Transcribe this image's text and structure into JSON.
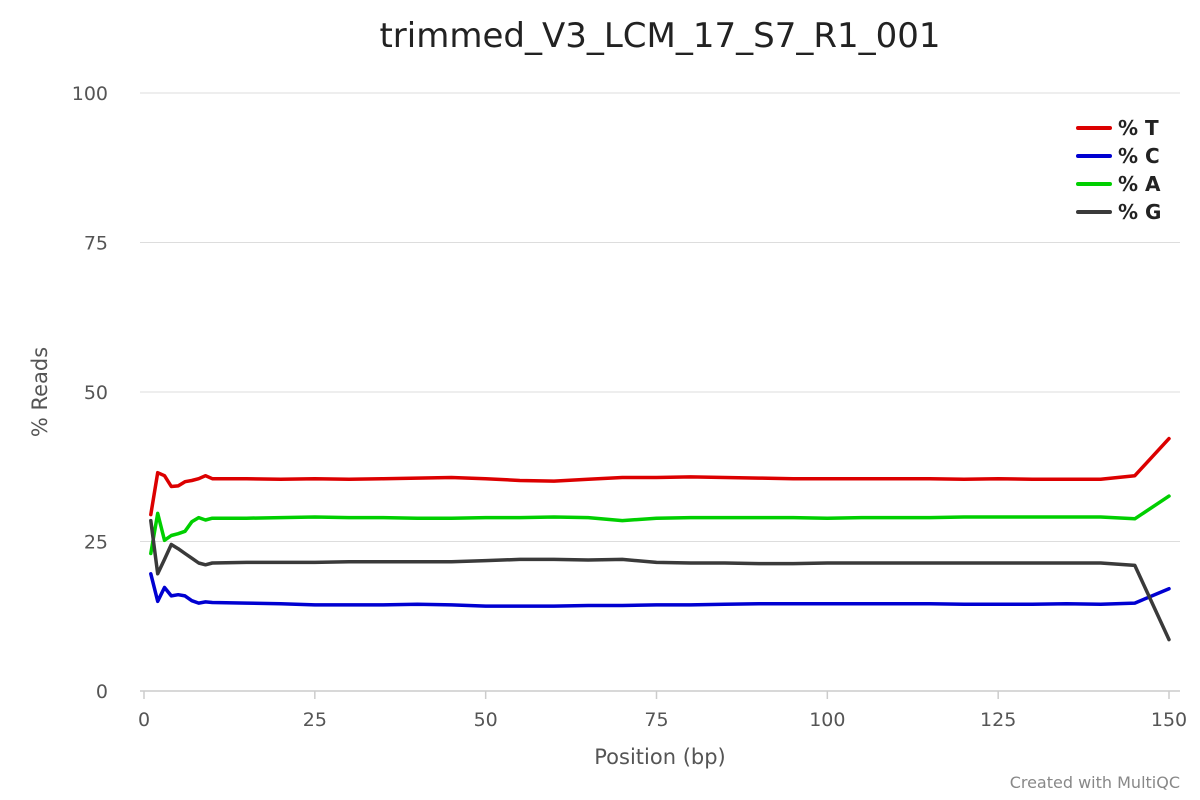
{
  "chart_data": {
    "type": "line",
    "title": "trimmed_V3_LCM_17_S7_R1_001",
    "xlabel": "Position (bp)",
    "ylabel": "% Reads",
    "xlim": [
      0,
      151
    ],
    "ylim": [
      0,
      100
    ],
    "x_ticks": [
      "0",
      "25",
      "50",
      "75",
      "100",
      "125",
      "150"
    ],
    "y_ticks": [
      "0",
      "25",
      "50",
      "75",
      "100"
    ],
    "grid": "horizontal",
    "legend_position": "top-right",
    "credit": "Created with MultiQC",
    "series": [
      {
        "name": "% T",
        "color": "#dc0000",
        "x": [
          1,
          2,
          3,
          4,
          5,
          6,
          7,
          8,
          9,
          10,
          15,
          20,
          25,
          30,
          35,
          40,
          45,
          50,
          55,
          60,
          65,
          70,
          75,
          80,
          85,
          90,
          95,
          100,
          105,
          110,
          115,
          120,
          125,
          130,
          135,
          140,
          145,
          150
        ],
        "y": [
          29.5,
          36.5,
          36.0,
          34.2,
          34.3,
          35.0,
          35.2,
          35.5,
          36.0,
          35.5,
          35.5,
          35.4,
          35.5,
          35.4,
          35.5,
          35.6,
          35.7,
          35.5,
          35.2,
          35.1,
          35.4,
          35.7,
          35.7,
          35.8,
          35.7,
          35.6,
          35.5,
          35.5,
          35.5,
          35.5,
          35.5,
          35.4,
          35.5,
          35.4,
          35.4,
          35.4,
          36.0,
          42.2
        ]
      },
      {
        "name": "% C",
        "color": "#0000d1",
        "x": [
          1,
          2,
          3,
          4,
          5,
          6,
          7,
          8,
          9,
          10,
          15,
          20,
          25,
          30,
          35,
          40,
          45,
          50,
          55,
          60,
          65,
          70,
          75,
          80,
          85,
          90,
          95,
          100,
          105,
          110,
          115,
          120,
          125,
          130,
          135,
          140,
          145,
          150
        ],
        "y": [
          19.6,
          15.0,
          17.3,
          15.9,
          16.1,
          15.9,
          15.1,
          14.7,
          14.9,
          14.8,
          14.7,
          14.6,
          14.4,
          14.4,
          14.4,
          14.5,
          14.4,
          14.2,
          14.2,
          14.2,
          14.3,
          14.3,
          14.4,
          14.4,
          14.5,
          14.6,
          14.6,
          14.6,
          14.6,
          14.6,
          14.6,
          14.5,
          14.5,
          14.5,
          14.6,
          14.5,
          14.7,
          17.1
        ]
      },
      {
        "name": "% A",
        "color": "#00cf00",
        "x": [
          1,
          2,
          3,
          4,
          5,
          6,
          7,
          8,
          9,
          10,
          15,
          20,
          25,
          30,
          35,
          40,
          45,
          50,
          55,
          60,
          65,
          70,
          75,
          80,
          85,
          90,
          95,
          100,
          105,
          110,
          115,
          120,
          125,
          130,
          135,
          140,
          145,
          150
        ],
        "y": [
          23.0,
          29.7,
          25.2,
          26.0,
          26.3,
          26.7,
          28.3,
          29.0,
          28.6,
          28.9,
          28.9,
          29.0,
          29.1,
          29.0,
          29.0,
          28.9,
          28.9,
          29.0,
          29.0,
          29.1,
          29.0,
          28.5,
          28.9,
          29.0,
          29.0,
          29.0,
          29.0,
          28.9,
          29.0,
          29.0,
          29.0,
          29.1,
          29.1,
          29.1,
          29.1,
          29.1,
          28.8,
          32.6
        ]
      },
      {
        "name": "% G",
        "color": "#3a3a3a",
        "x": [
          1,
          2,
          3,
          4,
          5,
          6,
          7,
          8,
          9,
          10,
          15,
          20,
          25,
          30,
          35,
          40,
          45,
          50,
          55,
          60,
          65,
          70,
          75,
          80,
          85,
          90,
          95,
          100,
          105,
          110,
          115,
          120,
          125,
          130,
          135,
          140,
          145,
          150
        ],
        "y": [
          28.5,
          19.6,
          22.0,
          24.5,
          23.8,
          23.0,
          22.2,
          21.4,
          21.1,
          21.4,
          21.5,
          21.5,
          21.5,
          21.6,
          21.6,
          21.6,
          21.6,
          21.8,
          22.0,
          22.0,
          21.9,
          22.0,
          21.5,
          21.4,
          21.4,
          21.3,
          21.3,
          21.4,
          21.4,
          21.4,
          21.4,
          21.4,
          21.4,
          21.4,
          21.4,
          21.4,
          21.0,
          8.6
        ]
      }
    ]
  }
}
